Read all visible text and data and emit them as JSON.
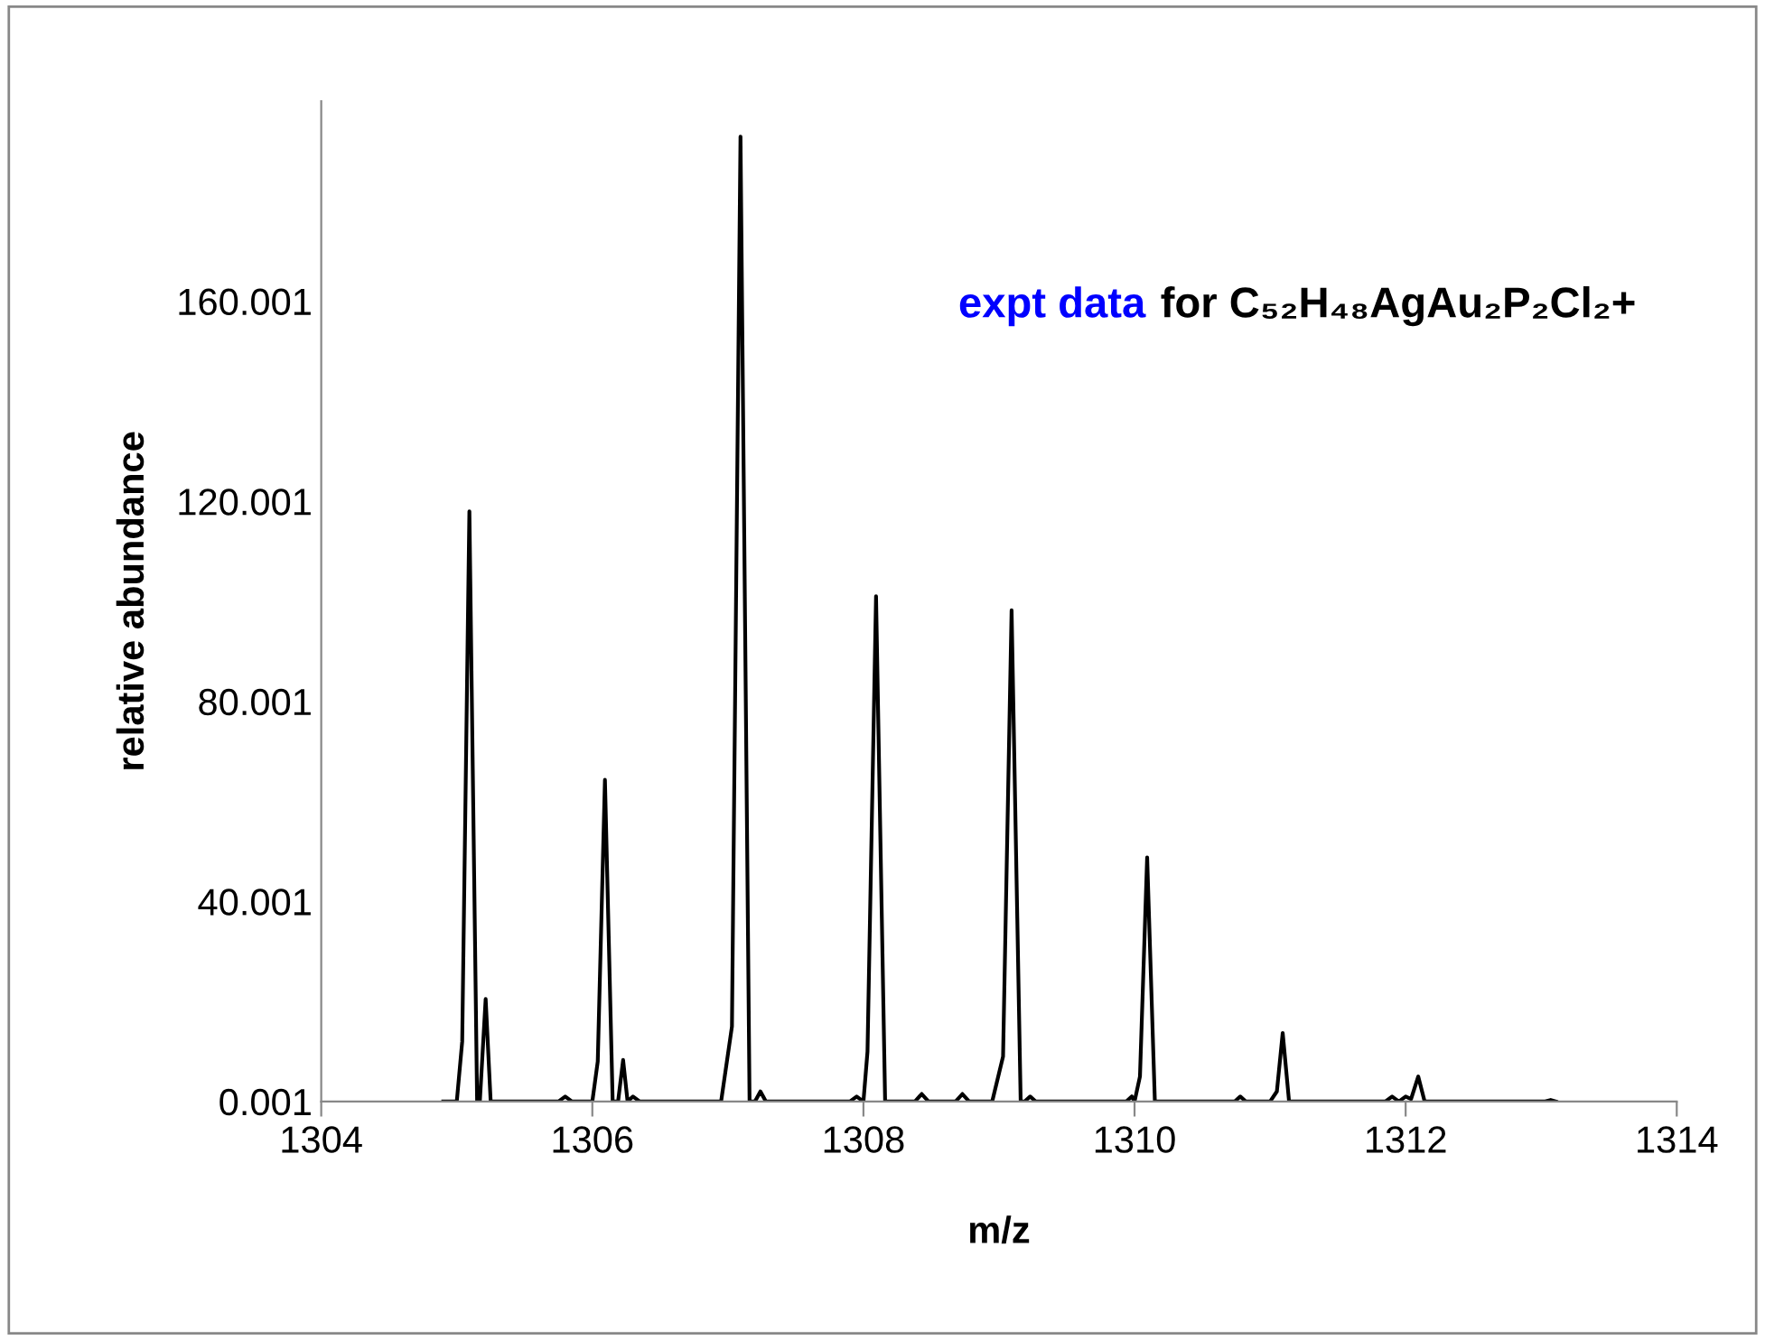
{
  "chart_data": {
    "type": "line",
    "xlabel": "m/z",
    "ylabel": "relative abundance",
    "annotations": [
      "expt data",
      "for C₅₂H₄₈AgAu₂P₂Cl₂+"
    ],
    "xlim": [
      1304,
      1314
    ],
    "xticks": [
      1304,
      1306,
      1308,
      1310,
      1312,
      1314
    ],
    "ylim": [
      0.001,
      200.001
    ],
    "yticks": [
      0.001,
      40.001,
      80.001,
      120.001,
      160.001
    ],
    "grid": false,
    "legend": false,
    "marker": "none",
    "line_style": "solid",
    "series": [
      {
        "color": "#000000",
        "x": [
          1304.9,
          1305.0,
          1305.04,
          1305.093,
          1305.15,
          1305.17,
          1305.213,
          1305.25,
          1305.75,
          1305.8,
          1305.85,
          1306.0,
          1306.04,
          1306.093,
          1306.15,
          1306.19,
          1306.227,
          1306.26,
          1306.3,
          1306.35,
          1306.95,
          1307.03,
          1307.093,
          1307.16,
          1307.2,
          1307.24,
          1307.28,
          1307.9,
          1307.95,
          1308.0,
          1308.03,
          1308.093,
          1308.16,
          1308.38,
          1308.43,
          1308.48,
          1308.68,
          1308.73,
          1308.78,
          1308.95,
          1309.03,
          1309.093,
          1309.16,
          1309.19,
          1309.23,
          1309.27,
          1309.94,
          1309.98,
          1310.0,
          1310.04,
          1310.093,
          1310.15,
          1310.74,
          1310.78,
          1310.82,
          1311.0,
          1311.05,
          1311.093,
          1311.14,
          1311.85,
          1311.9,
          1311.95,
          1312.0,
          1312.04,
          1312.093,
          1312.14,
          1313.03,
          1313.07,
          1313.11
        ],
        "values": [
          0.001,
          0.001,
          12,
          118,
          0.001,
          0.001,
          20.5,
          0.001,
          0.001,
          1,
          0.001,
          0.001,
          8,
          64.3,
          0.001,
          0.001,
          8.3,
          0.001,
          1,
          0.001,
          0.001,
          15,
          192.9,
          0.001,
          0.001,
          2,
          0.001,
          0.001,
          1,
          0.001,
          10,
          101,
          0.001,
          0.001,
          1.5,
          0.001,
          0.001,
          1.5,
          0.001,
          0.001,
          9,
          98.2,
          0.001,
          0.001,
          1,
          0.001,
          0.001,
          1,
          0.001,
          5,
          48.8,
          0.001,
          0.001,
          1,
          0.001,
          0.001,
          2,
          13.7,
          0.001,
          0.001,
          1,
          0.001,
          1,
          0.5,
          5,
          0.001,
          0.001,
          0.3,
          0.001
        ]
      }
    ]
  }
}
